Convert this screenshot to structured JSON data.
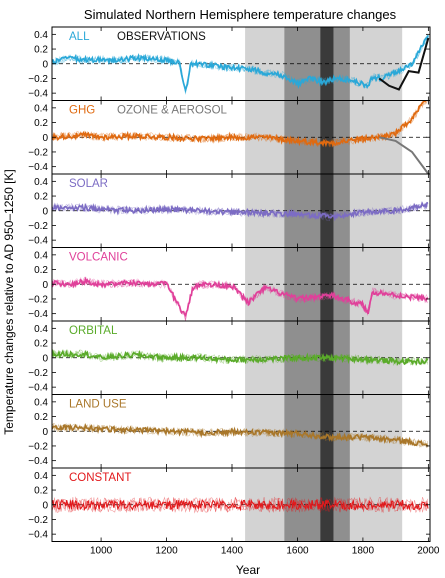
{
  "chart_data": {
    "type": "line",
    "title": "Simulated Northern Hemisphere temperature changes",
    "xlabel": "Year",
    "ylabel": "Temperature changes relative to AD 950–1250  [K]",
    "xlim": [
      850,
      2005
    ],
    "xticks": [
      1000,
      1200,
      1400,
      1600,
      1800,
      2000
    ],
    "ylim": [
      -0.5,
      0.5
    ],
    "yticks": [
      -0.4,
      -0.2,
      0,
      0.2,
      0.4
    ],
    "ytick_labels": [
      "−0.4",
      "−0.2",
      "0",
      "0.2",
      "0.4"
    ],
    "reference_line": 0,
    "grid": false,
    "shaded_intervals": [
      {
        "start": 1440,
        "end": 1920,
        "color": "#d3d3d3"
      },
      {
        "start": 1560,
        "end": 1760,
        "color": "#8f8f8f"
      },
      {
        "start": 1670,
        "end": 1710,
        "color": "#3a3a3a"
      }
    ],
    "panels": [
      {
        "label": "ALL",
        "color": "#2aa8d8",
        "extra_label": "OBSERVATIONS",
        "extra_color": "#111111",
        "anchors": [
          [
            850,
            0.02
          ],
          [
            900,
            0.08
          ],
          [
            950,
            0.05
          ],
          [
            1000,
            0.06
          ],
          [
            1050,
            0.04
          ],
          [
            1100,
            0.08
          ],
          [
            1150,
            0.06
          ],
          [
            1200,
            0.05
          ],
          [
            1240,
            0.02
          ],
          [
            1258,
            -0.38
          ],
          [
            1275,
            0.01
          ],
          [
            1300,
            0.0
          ],
          [
            1350,
            -0.03
          ],
          [
            1400,
            -0.05
          ],
          [
            1450,
            -0.07
          ],
          [
            1480,
            -0.1
          ],
          [
            1500,
            -0.12
          ],
          [
            1550,
            -0.15
          ],
          [
            1600,
            -0.27
          ],
          [
            1640,
            -0.2
          ],
          [
            1680,
            -0.25
          ],
          [
            1720,
            -0.2
          ],
          [
            1760,
            -0.22
          ],
          [
            1815,
            -0.3
          ],
          [
            1830,
            -0.18
          ],
          [
            1860,
            -0.2
          ],
          [
            1900,
            -0.12
          ],
          [
            1950,
            0.0
          ],
          [
            2000,
            0.38
          ]
        ],
        "observations": [
          [
            1850,
            -0.2
          ],
          [
            1880,
            -0.3
          ],
          [
            1910,
            -0.35
          ],
          [
            1940,
            -0.1
          ],
          [
            1970,
            -0.12
          ],
          [
            2000,
            0.35
          ]
        ]
      },
      {
        "label": "GHG",
        "color": "#e06a10",
        "extra_label": "OZONE & AEROSOL",
        "extra_color": "#777777",
        "anchors": [
          [
            850,
            0.0
          ],
          [
            950,
            0.03
          ],
          [
            1000,
            0.0
          ],
          [
            1100,
            0.02
          ],
          [
            1200,
            0.0
          ],
          [
            1300,
            -0.02
          ],
          [
            1400,
            0.0
          ],
          [
            1500,
            0.0
          ],
          [
            1600,
            -0.05
          ],
          [
            1700,
            -0.08
          ],
          [
            1800,
            -0.02
          ],
          [
            1850,
            0.0
          ],
          [
            1900,
            0.05
          ],
          [
            1950,
            0.25
          ],
          [
            2000,
            0.55
          ]
        ],
        "ozone_aerosol": [
          [
            1850,
            0.0
          ],
          [
            1900,
            -0.05
          ],
          [
            1950,
            -0.2
          ],
          [
            2000,
            -0.5
          ]
        ]
      },
      {
        "label": "SOLAR",
        "color": "#7c6cc4",
        "anchors": [
          [
            850,
            0.05
          ],
          [
            950,
            0.04
          ],
          [
            1000,
            0.02
          ],
          [
            1100,
            0.0
          ],
          [
            1200,
            0.02
          ],
          [
            1300,
            0.0
          ],
          [
            1400,
            -0.02
          ],
          [
            1500,
            -0.03
          ],
          [
            1600,
            -0.05
          ],
          [
            1700,
            -0.08
          ],
          [
            1800,
            -0.02
          ],
          [
            1900,
            0.0
          ],
          [
            2000,
            0.08
          ]
        ]
      },
      {
        "label": "VOLCANIC",
        "color": "#e0409a",
        "anchors": [
          [
            850,
            0.02
          ],
          [
            900,
            0.0
          ],
          [
            950,
            0.04
          ],
          [
            1000,
            0.0
          ],
          [
            1100,
            0.02
          ],
          [
            1200,
            0.0
          ],
          [
            1258,
            -0.45
          ],
          [
            1280,
            -0.05
          ],
          [
            1300,
            0.0
          ],
          [
            1400,
            -0.02
          ],
          [
            1450,
            -0.25
          ],
          [
            1500,
            -0.05
          ],
          [
            1600,
            -0.2
          ],
          [
            1700,
            -0.15
          ],
          [
            1800,
            -0.28
          ],
          [
            1815,
            -0.4
          ],
          [
            1830,
            -0.1
          ],
          [
            1900,
            -0.15
          ],
          [
            2000,
            -0.2
          ]
        ]
      },
      {
        "label": "ORBITAL",
        "color": "#5aab2a",
        "anchors": [
          [
            850,
            0.05
          ],
          [
            950,
            0.05
          ],
          [
            1000,
            0.0
          ],
          [
            1100,
            0.04
          ],
          [
            1200,
            0.0
          ],
          [
            1300,
            0.0
          ],
          [
            1400,
            -0.03
          ],
          [
            1500,
            -0.02
          ],
          [
            1600,
            0.0
          ],
          [
            1700,
            0.0
          ],
          [
            1800,
            -0.02
          ],
          [
            1900,
            -0.05
          ],
          [
            2000,
            -0.05
          ]
        ]
      },
      {
        "label": "LAND USE",
        "color": "#a9772a",
        "anchors": [
          [
            850,
            0.05
          ],
          [
            950,
            0.05
          ],
          [
            1000,
            0.03
          ],
          [
            1100,
            0.02
          ],
          [
            1200,
            0.0
          ],
          [
            1300,
            -0.02
          ],
          [
            1400,
            -0.01
          ],
          [
            1500,
            -0.02
          ],
          [
            1600,
            -0.03
          ],
          [
            1700,
            -0.08
          ],
          [
            1800,
            -0.08
          ],
          [
            1900,
            -0.12
          ],
          [
            2000,
            -0.18
          ]
        ]
      },
      {
        "label": "CONSTANT",
        "color": "#e2191c",
        "anchors": [
          [
            850,
            0.0
          ],
          [
            1000,
            0.0
          ],
          [
            1100,
            0.0
          ],
          [
            1200,
            0.0
          ],
          [
            1300,
            0.0
          ],
          [
            1400,
            0.0
          ],
          [
            1500,
            0.0
          ],
          [
            1600,
            0.0
          ],
          [
            1700,
            0.0
          ],
          [
            1800,
            0.0
          ],
          [
            1900,
            0.0
          ],
          [
            2000,
            0.0
          ]
        ]
      }
    ]
  }
}
